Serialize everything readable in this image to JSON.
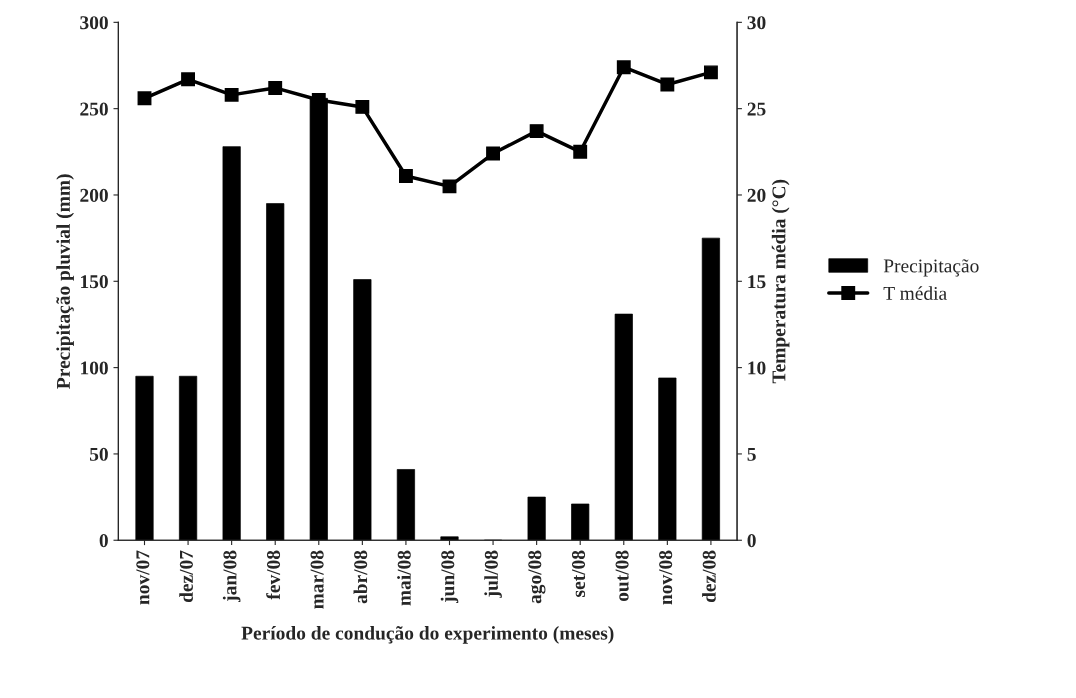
{
  "chart_data": {
    "type": "bar",
    "xlabel": "Período de condução do experimento (meses)",
    "ylabel": "Precipitação pluvial (mm)",
    "y2label": "Temperatura média (°C)",
    "categories": [
      "nov/07",
      "dez/07",
      "jan/08",
      "fev/08",
      "mar/08",
      "abr/08",
      "mai/08",
      "jun/08",
      "jul/08",
      "ago/08",
      "set/08",
      "out/08",
      "nov/08",
      "dez/08"
    ],
    "series": [
      {
        "name": "Precipitação",
        "color": "#000000",
        "values": [
          95,
          95,
          228,
          195,
          256,
          151,
          41,
          2,
          0,
          25,
          21,
          131,
          94,
          175
        ]
      },
      {
        "name": "T média",
        "type": "line",
        "axis": "y2",
        "color": "#000000",
        "marker": "square",
        "line_style": "solid",
        "values": [
          25.6,
          26.7,
          25.8,
          26.2,
          25.5,
          25.1,
          21.1,
          20.5,
          22.4,
          23.7,
          22.5,
          27.4,
          26.4,
          27.1
        ]
      }
    ],
    "ylim": [
      0,
      300
    ],
    "yticks": [
      0,
      50,
      100,
      150,
      200,
      250,
      300
    ],
    "y2lim": [
      0,
      30
    ],
    "y2ticks": [
      0,
      5,
      10,
      15,
      20,
      25,
      30
    ],
    "grid": false,
    "legend": "right"
  }
}
